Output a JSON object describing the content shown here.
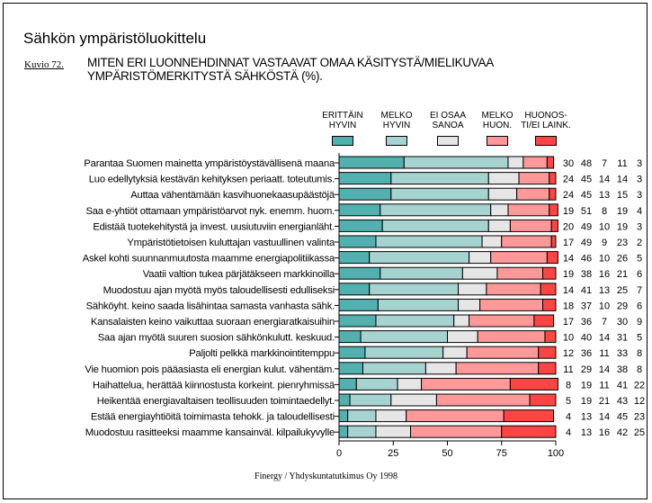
{
  "title": "Sähkön ympäristöluokittelu",
  "figure_label": "Kuvio 72.",
  "subtitle": "MITEN ERI LUONNEHDINNAT VASTAAVAT OMAA KÄSITYSTÄ/MIELIKUVAA YMPÄRISTÖMERKITYSTÄ SÄHKÖSTÄ (%).",
  "footer": "Finergy / Yhdyskuntatutkimus Oy 1998",
  "chart_data": {
    "type": "bar",
    "stacked": true,
    "orientation": "horizontal",
    "xlim": [
      0,
      100
    ],
    "xticks": [
      "0",
      "25",
      "50",
      "75",
      "100"
    ],
    "grid": false,
    "legend_placement": "top-right",
    "colors": [
      "#52b0ae",
      "#a6d2d0",
      "#e6e6e6",
      "#ff9999",
      "#ff4444"
    ],
    "series": [
      {
        "name": "ERITTÄIN HYVIN",
        "values": [
          30,
          24,
          24,
          19,
          20,
          17,
          14,
          19,
          14,
          18,
          17,
          10,
          12,
          11,
          8,
          5,
          4,
          4
        ]
      },
      {
        "name": "MELKO HYVIN",
        "values": [
          48,
          45,
          45,
          51,
          49,
          49,
          46,
          38,
          41,
          37,
          36,
          40,
          36,
          29,
          19,
          19,
          13,
          13
        ]
      },
      {
        "name": "EI OSAA SANOA",
        "values": [
          7,
          14,
          13,
          8,
          10,
          9,
          10,
          16,
          13,
          10,
          7,
          14,
          11,
          14,
          11,
          21,
          14,
          16
        ]
      },
      {
        "name": "MELKO HUON.",
        "values": [
          11,
          14,
          15,
          19,
          19,
          23,
          26,
          21,
          25,
          29,
          30,
          31,
          33,
          38,
          41,
          43,
          45,
          42
        ]
      },
      {
        "name": "HUONOSTI/EI LAINK.",
        "values": [
          3,
          3,
          3,
          4,
          3,
          2,
          5,
          6,
          7,
          6,
          9,
          5,
          8,
          8,
          22,
          12,
          23,
          25
        ]
      }
    ],
    "legend_labels": [
      [
        "ERITTÄIN",
        "HYVIN"
      ],
      [
        "MELKO",
        "HYVIN"
      ],
      [
        "EI OSAA",
        "SANOA"
      ],
      [
        "MELKO",
        "HUON."
      ],
      [
        "HUONOS-",
        "TI/EI LAINK."
      ]
    ],
    "categories": [
      "Parantaa Suomen mainetta ympäristöystävällisenä maana",
      "Luo edellytyksiä kestävän kehityksen periaatt. toteutumis.",
      "Auttaa vähentämään kasvihuonekaasupäästöjä",
      "Saa e-yhtiöt ottamaan ympäristöarvot nyk. enemm. huom.",
      "Edistää tuotekehitystä ja invest. uusiutuviin energianläht.",
      "Ympäristötietoisen kuluttajan vastuullinen valinta",
      "Askel kohti suunnanmuutosta maamme energiapolitiikassa",
      "Vaatii valtion tukea pärjätäkseen markkinoilla",
      "Muodostuu ajan myötä myös taloudellisesti edulliseksi",
      "Sähköyht. keino saada lisähintaa samasta vanhasta sähk.",
      "Kansalaisten keino vaikuttaa suoraan energiaratkaisuihin",
      "Saa ajan myötä suuren suosion sähkönkulutt. keskuud.",
      "Paljolti pelkkä markkinointitemppu",
      "Vie huomion pois pääasiasta eli energian kulut. vähentäm.",
      "Haihattelua, herättää kiinnostusta korkeint. pienryhmissä",
      "Heikentää energiavaltaisen teollisuuden toimintaedellyt.",
      "Estää energiayhtiöitä toimimasta tehokk. ja taloudellisesti",
      "Muodostuu rasitteeksi maamme kansainväl. kilpailukyvylle"
    ]
  }
}
